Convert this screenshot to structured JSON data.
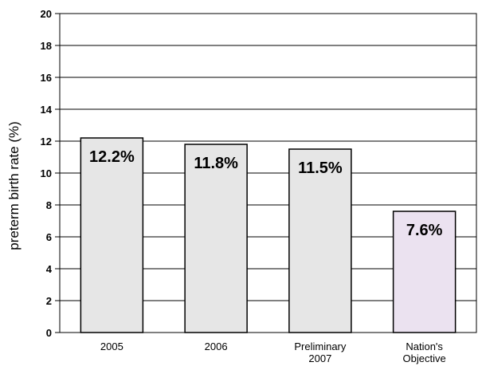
{
  "chart_data": {
    "type": "bar",
    "title": "",
    "xlabel": "",
    "ylabel": "preterm birth rate (%)",
    "ylim": [
      0,
      20
    ],
    "yticks": [
      0,
      2,
      4,
      6,
      8,
      10,
      12,
      14,
      16,
      18,
      20
    ],
    "grid": true,
    "legend": "none",
    "categories": [
      [
        "2005"
      ],
      [
        "2006"
      ],
      [
        "Preliminary",
        "2007"
      ],
      [
        "Nation's",
        "Objective"
      ]
    ],
    "values": [
      12.2,
      11.8,
      11.5,
      7.6
    ],
    "data_labels": [
      "12.2%",
      "11.8%",
      "11.5%",
      "7.6%"
    ],
    "bar_colors": [
      "#e6e6e6",
      "#e6e6e6",
      "#e6e6e6",
      "#ebe2f0"
    ],
    "gridline_color": "#000000",
    "bar_edge_color": "#000000"
  }
}
